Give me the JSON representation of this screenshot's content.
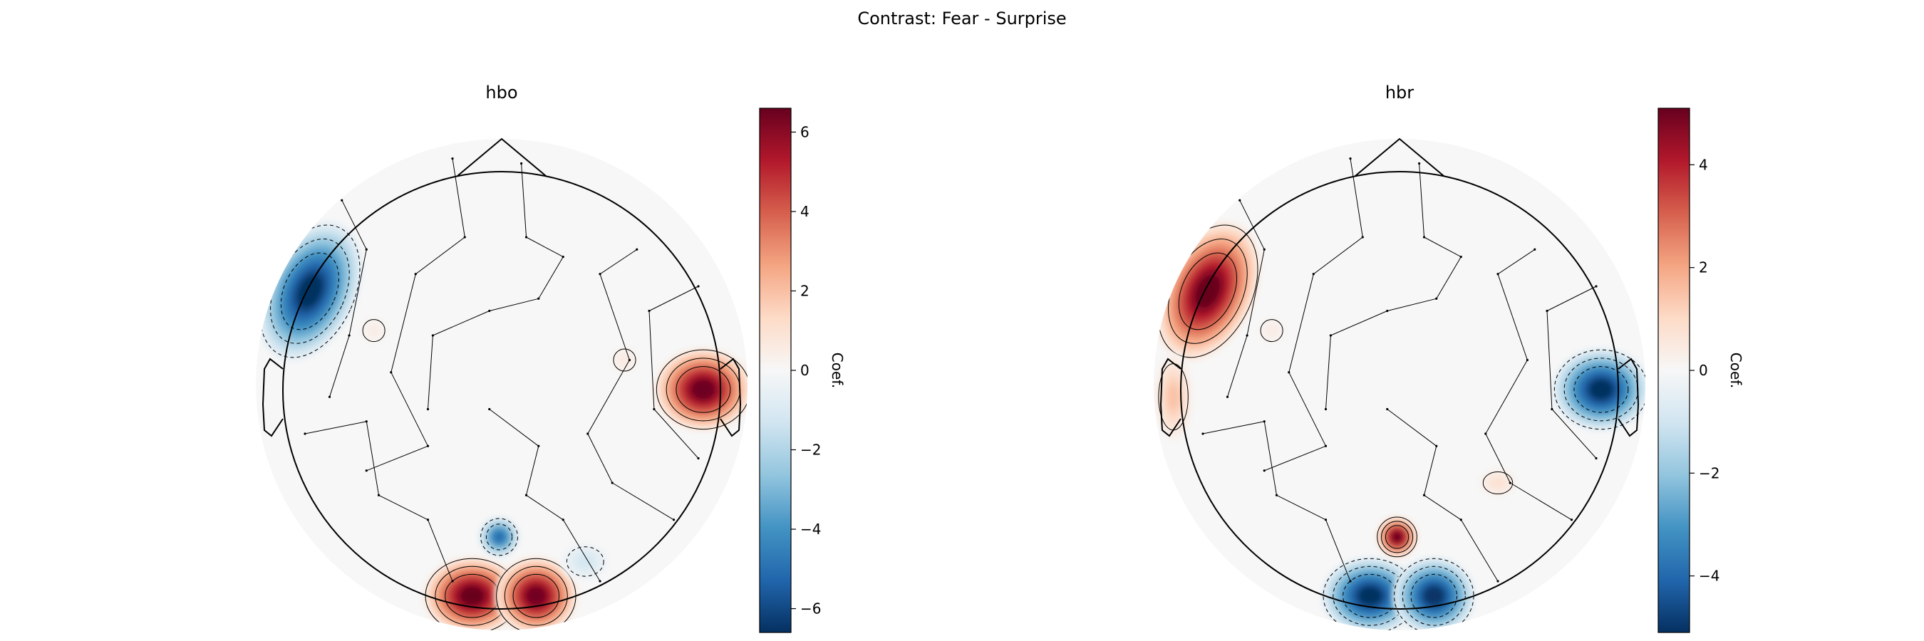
{
  "figure": {
    "suptitle": "Contrast: Fear - Surprise"
  },
  "chart_data": [
    {
      "type": "heatmap",
      "subtype": "topomap",
      "title": "hbo",
      "colormap": "RdBu_r",
      "colorbar": {
        "label": "Coef.",
        "range": [
          -6.6,
          6.6
        ],
        "ticks": [
          -6,
          -4,
          -2,
          0,
          2,
          4,
          6
        ],
        "tick_labels": [
          "−6",
          "−4",
          "−2",
          "0",
          "2",
          "4",
          "6"
        ]
      },
      "blobs": [
        {
          "region": "left-frontal",
          "sign": "negative",
          "peak": -6.6
        },
        {
          "region": "right-temporal",
          "sign": "positive",
          "peak": 6.5
        },
        {
          "region": "occipital-left",
          "sign": "positive",
          "peak": 6.6
        },
        {
          "region": "occipital-right",
          "sign": "positive",
          "peak": 6.4
        },
        {
          "region": "parieto-occipital-midline",
          "sign": "negative",
          "peak": -5.0
        },
        {
          "region": "right-occipital-lateral",
          "sign": "negative",
          "peak": -1.2
        },
        {
          "region": "right-frontal-weak",
          "sign": "positive",
          "peak": 0.6
        },
        {
          "region": "left-frontal-weak",
          "sign": "positive",
          "peak": 0.5
        }
      ]
    },
    {
      "type": "heatmap",
      "subtype": "topomap",
      "title": "hbr",
      "colormap": "RdBu_r",
      "colorbar": {
        "label": "Coef.",
        "range": [
          -5.1,
          5.1
        ],
        "ticks": [
          -4,
          -2,
          0,
          2,
          4
        ],
        "tick_labels": [
          "−4",
          "−2",
          "0",
          "2",
          "4"
        ]
      },
      "blobs": [
        {
          "region": "left-frontal",
          "sign": "positive",
          "peak": 5.1
        },
        {
          "region": "left-temporal",
          "sign": "positive",
          "peak": 1.5
        },
        {
          "region": "right-temporal",
          "sign": "negative",
          "peak": -5.1
        },
        {
          "region": "occipital-left",
          "sign": "negative",
          "peak": -5.1
        },
        {
          "region": "occipital-right",
          "sign": "negative",
          "peak": -5.0
        },
        {
          "region": "parieto-occipital-midline",
          "sign": "positive",
          "peak": 5.0
        },
        {
          "region": "right-parietal-weak",
          "sign": "positive",
          "peak": 0.8
        },
        {
          "region": "left-frontal-weak",
          "sign": "positive",
          "peak": 0.4
        }
      ]
    }
  ]
}
